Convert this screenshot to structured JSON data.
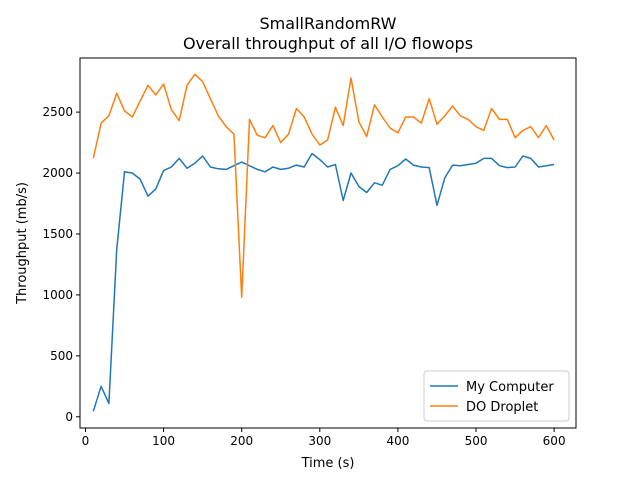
{
  "chart_data": {
    "type": "line",
    "title": "SmallRandomRW",
    "subtitle": "Overall throughput of all I/O flowops",
    "xlabel": "Time (s)",
    "ylabel": "Throughput (mb/s)",
    "xlim": [
      -7,
      628
    ],
    "ylim": [
      -92,
      2944
    ],
    "xticks": [
      0,
      100,
      200,
      300,
      400,
      500,
      600
    ],
    "yticks": [
      0,
      500,
      1000,
      1500,
      2000,
      2500
    ],
    "legend_position": "lower-right",
    "grid": false,
    "x": [
      10,
      20,
      30,
      40,
      50,
      60,
      70,
      80,
      90,
      100,
      110,
      120,
      130,
      140,
      150,
      160,
      170,
      180,
      190,
      200,
      210,
      220,
      230,
      240,
      250,
      260,
      270,
      280,
      290,
      300,
      310,
      320,
      330,
      340,
      350,
      360,
      370,
      380,
      390,
      400,
      410,
      420,
      430,
      440,
      450,
      460,
      470,
      480,
      490,
      500,
      510,
      520,
      530,
      540,
      550,
      560,
      570,
      580,
      590,
      600
    ],
    "series": [
      {
        "name": "My Computer",
        "color": "#1f77b4",
        "values": [
          45,
          250,
          110,
          1370,
          2010,
          2000,
          1950,
          1810,
          1870,
          2020,
          2050,
          2120,
          2040,
          2080,
          2140,
          2050,
          2035,
          2030,
          2060,
          2090,
          2060,
          2030,
          2010,
          2050,
          2030,
          2040,
          2065,
          2050,
          2160,
          2110,
          2050,
          2070,
          1775,
          2000,
          1890,
          1840,
          1920,
          1900,
          2030,
          2060,
          2115,
          2065,
          2050,
          2045,
          1735,
          1960,
          2065,
          2060,
          2070,
          2080,
          2120,
          2120,
          2060,
          2045,
          2050,
          2140,
          2120,
          2050,
          2060,
          2070
        ]
      },
      {
        "name": "DO Droplet",
        "color": "#ff7f0e",
        "values": [
          2120,
          2410,
          2470,
          2655,
          2510,
          2460,
          2590,
          2720,
          2640,
          2730,
          2520,
          2430,
          2720,
          2810,
          2750,
          2610,
          2470,
          2380,
          2320,
          980,
          2440,
          2310,
          2290,
          2390,
          2250,
          2320,
          2530,
          2460,
          2320,
          2230,
          2270,
          2540,
          2390,
          2780,
          2420,
          2300,
          2560,
          2460,
          2370,
          2330,
          2460,
          2460,
          2410,
          2610,
          2400,
          2470,
          2550,
          2470,
          2440,
          2380,
          2350,
          2530,
          2440,
          2440,
          2290,
          2350,
          2380,
          2290,
          2390,
          2270
        ]
      }
    ]
  }
}
